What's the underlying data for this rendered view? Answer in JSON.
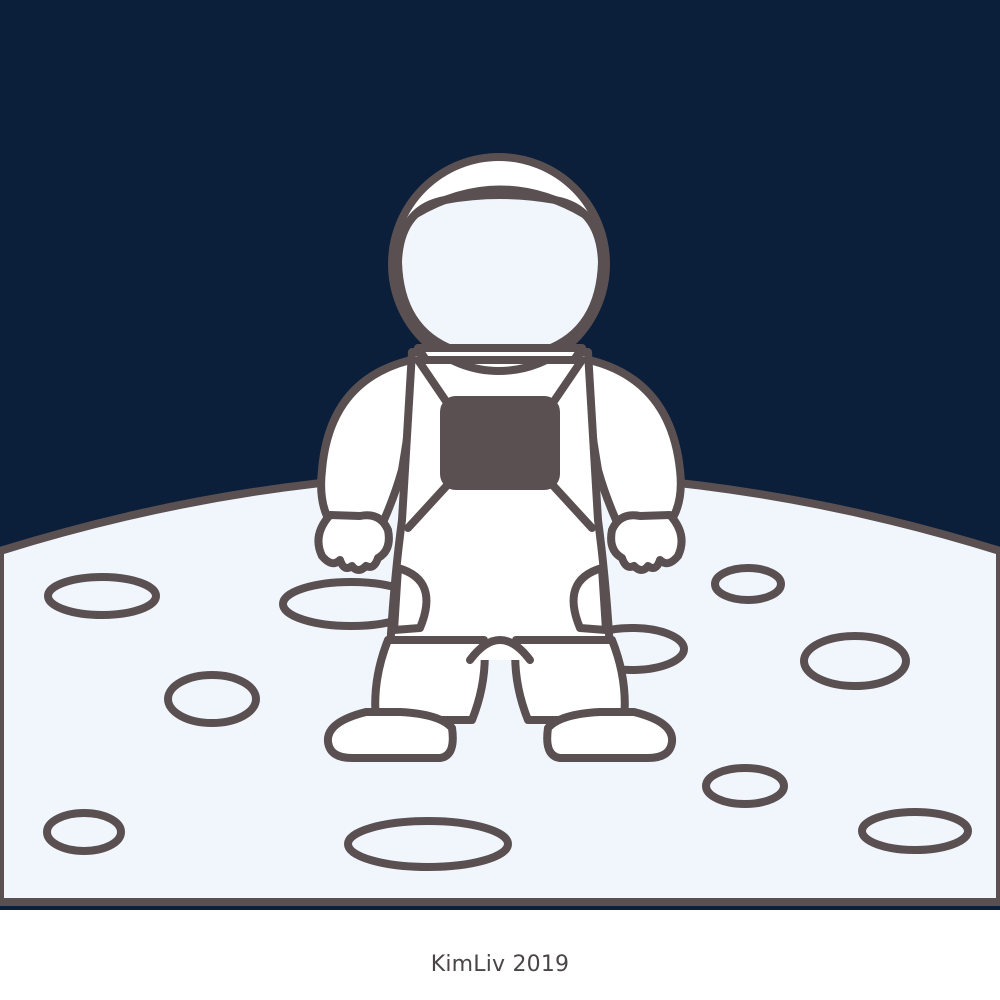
{
  "colors": {
    "sky": "#0b1f3a",
    "moon_surface": "#f1f6fd",
    "outline": "#5a5052",
    "suit": "#ffffff",
    "visor": "#f1f6fd",
    "chest_panel": "#5a5052"
  },
  "scene": {
    "subject": "astronaut-icon",
    "ground": "moon-icon"
  },
  "credit": {
    "text": "KimLiv 2019"
  }
}
